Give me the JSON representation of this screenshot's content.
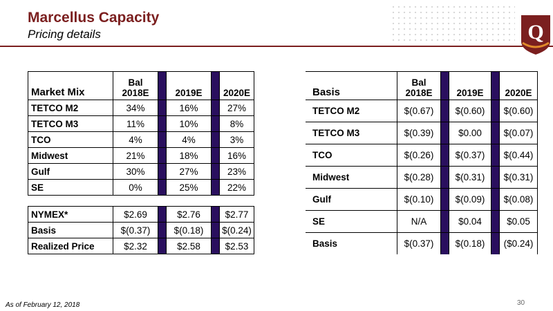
{
  "header": {
    "title": "Marcellus Capacity",
    "subtitle": "Pricing details",
    "accent_color": "#7b1f1f",
    "logo_icon": "q-logo-icon"
  },
  "market_mix": {
    "corner": "Market Mix",
    "columns": [
      "Bal\n2018E",
      "2019E",
      "2020E"
    ],
    "rows": [
      {
        "label": "TETCO M2",
        "values": [
          "34%",
          "16%",
          "27%"
        ]
      },
      {
        "label": "TETCO M3",
        "values": [
          "11%",
          "10%",
          "8%"
        ]
      },
      {
        "label": "TCO",
        "values": [
          "4%",
          "4%",
          "3%"
        ]
      },
      {
        "label": "Midwest",
        "values": [
          "21%",
          "18%",
          "16%"
        ]
      },
      {
        "label": "Gulf",
        "values": [
          "30%",
          "27%",
          "23%"
        ]
      },
      {
        "label": "SE",
        "values": [
          "0%",
          "25%",
          "22%"
        ]
      }
    ]
  },
  "pricing": {
    "rows": [
      {
        "label": "NYMEX*",
        "values": [
          "$2.69",
          "$2.76",
          "$2.77"
        ]
      },
      {
        "label": "Basis",
        "values": [
          "$(0.37)",
          "$(0.18)",
          "$(0.24)"
        ]
      },
      {
        "label": "Realized Price",
        "values": [
          "$2.32",
          "$2.58",
          "$2.53"
        ]
      }
    ]
  },
  "basis": {
    "corner": "Basis",
    "columns": [
      "Bal\n2018E",
      "2019E",
      "2020E"
    ],
    "rows": [
      {
        "label": "TETCO M2",
        "values": [
          "$(0.67)",
          "$(0.60)",
          "$(0.60)"
        ]
      },
      {
        "label": "TETCO M3",
        "values": [
          "$(0.39)",
          "$0.00",
          "$(0.07)"
        ]
      },
      {
        "label": "TCO",
        "values": [
          "$(0.26)",
          "$(0.37)",
          "$(0.44)"
        ]
      },
      {
        "label": "Midwest",
        "values": [
          "$(0.28)",
          "$(0.31)",
          "$(0.31)"
        ]
      },
      {
        "label": "Gulf",
        "values": [
          "$(0.10)",
          "$(0.09)",
          "$(0.08)"
        ]
      },
      {
        "label": "SE",
        "values": [
          "N/A",
          "$0.04",
          "$0.05"
        ]
      },
      {
        "label": "Basis",
        "values": [
          "$(0.37)",
          "$(0.18)",
          "($0.24)"
        ]
      }
    ]
  },
  "separator_color": "#2a0f5e",
  "footer": {
    "footnote": "As of February 12, 2018",
    "page_number": "30"
  }
}
